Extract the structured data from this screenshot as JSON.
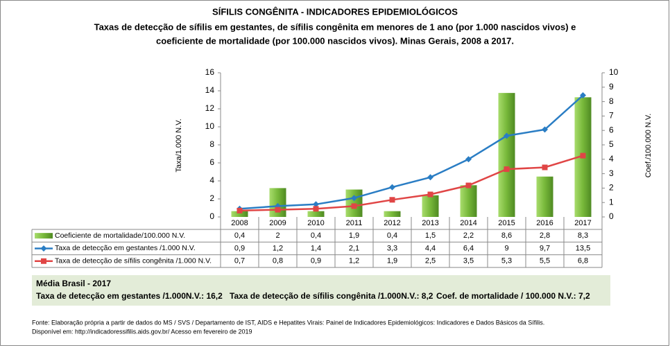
{
  "chart_data": {
    "type": "combo",
    "title": "SÍFILIS CONGÊNITA - INDICADORES EPIDEMIOLÓGICOS",
    "subtitle": [
      "Taxas de detecção de sífilis em gestantes, de sífilis congênita em menores de 1 ano (por 1.000 nascidos vivos) e",
      "coeficiente de mortalidade (por 100.000 nascidos vivos). Minas Gerais, 2008 a 2017."
    ],
    "y_label": "Taxa/1.000 N.V.",
    "y2_label": "Coef./100.000 N.V.",
    "categories": [
      "2008",
      "2009",
      "2010",
      "2011",
      "2012",
      "2013",
      "2014",
      "2015",
      "2016",
      "2017"
    ],
    "ylim": [
      0,
      16
    ],
    "yticks": [
      0,
      2,
      4,
      6,
      8,
      10,
      12,
      14,
      16
    ],
    "y2lim": [
      0,
      10
    ],
    "y2ticks": [
      0,
      1,
      2,
      3,
      4,
      5,
      6,
      7,
      8,
      9,
      10
    ],
    "series": [
      {
        "name": "Coeficiente de mortalidade/100.000 N.V.",
        "type": "bar",
        "axis": "y2",
        "color": "#77b83a",
        "values": [
          0.4,
          2,
          0.4,
          1.9,
          0.4,
          1.5,
          2.2,
          8.6,
          2.8,
          8.3
        ],
        "value_labels": [
          "0,4",
          "2",
          "0,4",
          "1,9",
          "0,4",
          "1,5",
          "2,2",
          "8,6",
          "2,8",
          "8,3"
        ]
      },
      {
        "name": "Taxa de detecção em gestantes /1.000 N.V.",
        "type": "line",
        "marker": "diamond",
        "color": "#2a7dc4",
        "values": [
          0.9,
          1.2,
          1.4,
          2.1,
          3.3,
          4.4,
          6.4,
          9,
          9.7,
          13.5
        ],
        "value_labels": [
          "0,9",
          "1,2",
          "1,4",
          "2,1",
          "3,3",
          "4,4",
          "6,4",
          "9",
          "9,7",
          "13,5"
        ]
      },
      {
        "name": "Taxa de detecção de sífilis congênita /1.000 N.V.",
        "type": "line",
        "marker": "square",
        "color": "#e04545",
        "values": [
          0.7,
          0.8,
          0.9,
          1.2,
          1.9,
          2.5,
          3.5,
          5.3,
          5.5,
          6.8
        ],
        "value_labels": [
          "0,7",
          "0,8",
          "0,9",
          "1,2",
          "1,9",
          "2,5",
          "3,5",
          "5,3",
          "5,5",
          "6,8"
        ]
      }
    ]
  },
  "summary": {
    "title": "Média Brasil - 2017",
    "items": [
      "Taxa de detecção em gestantes /1.000N.V.: 16,2",
      "Taxa de detecção de sífilis congênita /1.000N.V.: 8,2",
      "Coef. de mortalidade / 100.000 N.V.: 7,2"
    ]
  },
  "source": [
    "Fonte: Elaboração própria a partir de dados do MS / SVS / Departamento de IST, AIDS e Hepatites Virais: Painel de Indicadores Epidemiológicos: Indicadores e Dados Básicos da Sífilis.",
    "Disponível em: http://indicadoressifilis.aids.gov.br/   Acesso em fevereiro de 2019"
  ]
}
